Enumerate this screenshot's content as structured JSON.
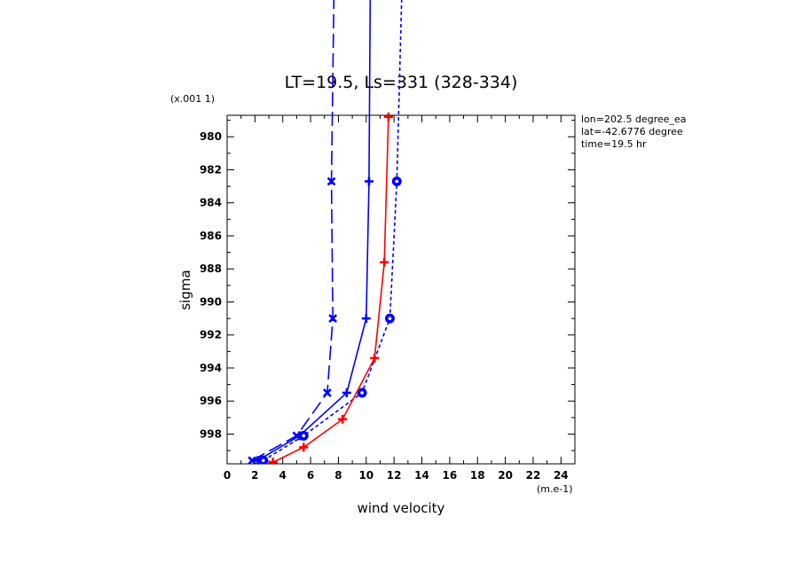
{
  "chart_data": {
    "type": "line",
    "title": "LT=19.5, Ls=331 (328-334)",
    "xlabel": "wind velocity",
    "ylabel": "sigma",
    "x_units": "(m.e-1)",
    "y_units": "(x.001 1)",
    "xlim": [
      0,
      25
    ],
    "ylim": [
      999.8,
      978.7
    ],
    "x_ticks": [
      "0",
      "2",
      "4",
      "6",
      "8",
      "10",
      "12",
      "14",
      "16",
      "18",
      "20",
      "22",
      "24"
    ],
    "y_ticks": [
      "980",
      "982",
      "984",
      "986",
      "988",
      "990",
      "992",
      "994",
      "996",
      "998"
    ],
    "annotations": [
      "lon=202.5 degree_ea",
      "lat=-42.6776 degree",
      "time=19.5 hr"
    ],
    "series": [
      {
        "style": "long-dash",
        "color": "#0000ff",
        "marker": "x",
        "points": [
          [
            1.8,
            999.6
          ],
          [
            5.0,
            998.1
          ],
          [
            7.2,
            995.5
          ],
          [
            7.6,
            991.0
          ],
          [
            7.5,
            982.7
          ],
          [
            7.7,
            970.0
          ]
        ],
        "markers": [
          [
            1.8,
            999.6
          ],
          [
            5.0,
            998.1
          ],
          [
            7.2,
            995.5
          ],
          [
            7.6,
            991.0
          ],
          [
            7.5,
            982.7
          ]
        ]
      },
      {
        "style": "solid",
        "color": "#0000ff",
        "marker": "plus",
        "points": [
          [
            2.2,
            999.6
          ],
          [
            5.2,
            998.1
          ],
          [
            8.6,
            995.5
          ],
          [
            10.0,
            991.0
          ],
          [
            10.2,
            982.7
          ],
          [
            10.3,
            970.0
          ]
        ],
        "markers": [
          [
            2.2,
            999.6
          ],
          [
            5.2,
            998.1
          ],
          [
            8.6,
            995.5
          ],
          [
            10.0,
            991.0
          ],
          [
            10.2,
            982.7
          ]
        ]
      },
      {
        "style": "short-dash",
        "color": "#0000ff",
        "marker": "circle",
        "points": [
          [
            2.6,
            999.6
          ],
          [
            5.5,
            998.1
          ],
          [
            9.7,
            995.5
          ],
          [
            11.7,
            991.0
          ],
          [
            12.2,
            982.7
          ],
          [
            12.6,
            970.0
          ]
        ],
        "markers": [
          [
            2.6,
            999.6
          ],
          [
            5.5,
            998.1
          ],
          [
            9.7,
            995.5
          ],
          [
            11.7,
            991.0
          ],
          [
            12.2,
            982.7
          ]
        ]
      },
      {
        "style": "solid",
        "color": "#ff0000",
        "marker": "plus",
        "points": [
          [
            3.3,
            999.7
          ],
          [
            5.5,
            998.8
          ],
          [
            8.3,
            997.1
          ],
          [
            10.6,
            993.4
          ],
          [
            11.3,
            987.6
          ],
          [
            11.6,
            978.8
          ]
        ],
        "markers": [
          [
            3.3,
            999.7
          ],
          [
            5.5,
            998.8
          ],
          [
            8.3,
            997.1
          ],
          [
            10.6,
            993.4
          ],
          [
            11.3,
            987.6
          ],
          [
            11.6,
            978.8
          ]
        ]
      }
    ]
  }
}
